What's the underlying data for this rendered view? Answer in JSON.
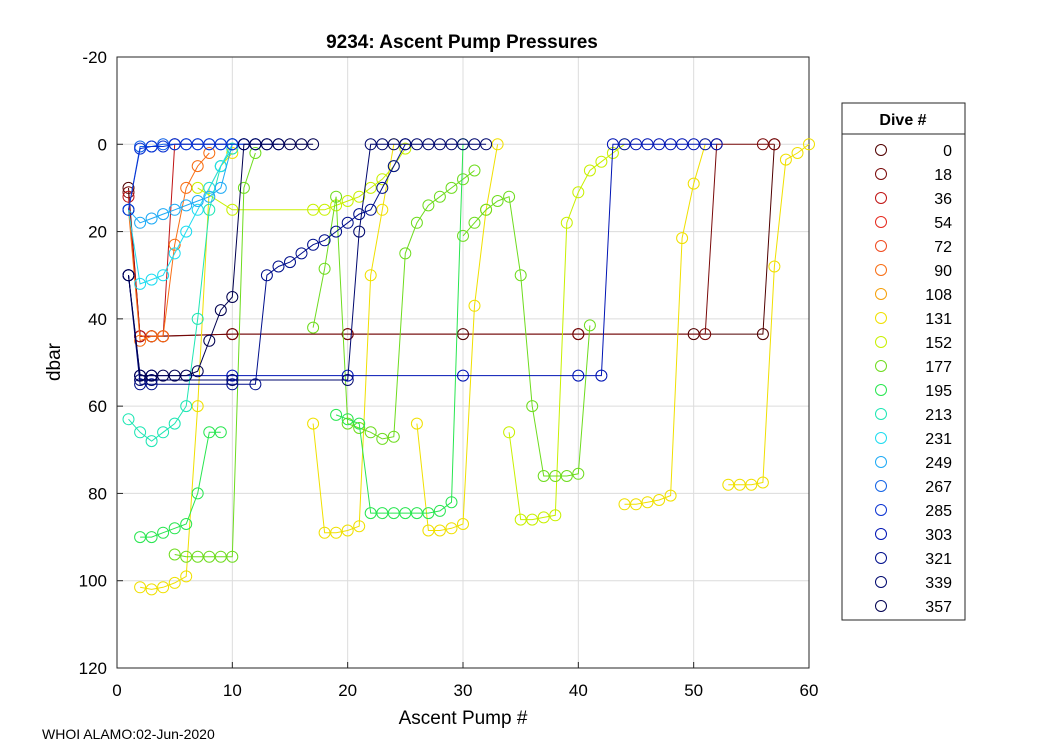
{
  "chart_data": {
    "type": "line",
    "title": "9234: Ascent Pump Pressures",
    "xlabel": "Ascent Pump #",
    "ylabel": "dbar",
    "xlim": [
      0,
      60
    ],
    "ylim": [
      -20,
      120
    ],
    "y_reversed": true,
    "grid": true,
    "marker": "open-circle",
    "x_ticks": [
      "0",
      "10",
      "20",
      "30",
      "40",
      "50",
      "60"
    ],
    "y_ticks": [
      "-20",
      "0",
      "20",
      "40",
      "60",
      "80",
      "100",
      "120"
    ],
    "legend": {
      "title": "Dive #",
      "placement": "right-outside",
      "entries": [
        {
          "label": "0",
          "color": "#500000"
        },
        {
          "label": "18",
          "color": "#7a0a0a"
        },
        {
          "label": "36",
          "color": "#c01414"
        },
        {
          "label": "54",
          "color": "#e62a1e"
        },
        {
          "label": "72",
          "color": "#f04a1e"
        },
        {
          "label": "90",
          "color": "#f86e14"
        },
        {
          "label": "108",
          "color": "#f5a00a"
        },
        {
          "label": "131",
          "color": "#f0e000"
        },
        {
          "label": "152",
          "color": "#c8f000"
        },
        {
          "label": "177",
          "color": "#6edc1e"
        },
        {
          "label": "195",
          "color": "#28e650"
        },
        {
          "label": "213",
          "color": "#1ee6b4"
        },
        {
          "label": "231",
          "color": "#1edcf0"
        },
        {
          "label": "249",
          "color": "#1eaaf5"
        },
        {
          "label": "267",
          "color": "#1464e6"
        },
        {
          "label": "285",
          "color": "#0a32d2"
        },
        {
          "label": "303",
          "color": "#0014b4"
        },
        {
          "label": "321",
          "color": "#000f8c"
        },
        {
          "label": "339",
          "color": "#00086e"
        },
        {
          "label": "357",
          "color": "#000050"
        }
      ]
    },
    "series": [
      {
        "dive": "0",
        "color": "#500000",
        "x": [
          1,
          2,
          3,
          4,
          10,
          20,
          30,
          40,
          50,
          56,
          57
        ],
        "y": [
          10,
          44,
          44,
          44,
          43.5,
          43.5,
          43.5,
          43.5,
          43.5,
          43.5,
          0
        ]
      },
      {
        "dive": "18",
        "color": "#7a0a0a",
        "x": [
          1,
          2,
          3,
          10,
          20,
          40,
          51,
          52,
          56,
          57
        ],
        "y": [
          11,
          44,
          44,
          43.5,
          43.5,
          43.5,
          43.5,
          0,
          0,
          0
        ]
      },
      {
        "dive": "36",
        "color": "#c01414",
        "x": [
          1,
          2,
          3,
          4,
          5,
          10
        ],
        "y": [
          12,
          44,
          44,
          44,
          0,
          0
        ]
      },
      {
        "dive": "90",
        "color": "#f86e14",
        "x": [
          1,
          2,
          3,
          4,
          5,
          6,
          7,
          8
        ],
        "y": [
          15,
          45,
          44,
          44,
          23,
          10,
          5,
          2
        ]
      },
      {
        "dive": "131",
        "color": "#f0e000",
        "x": [
          2,
          3,
          4,
          5,
          6,
          7,
          8,
          9,
          10
        ],
        "y": [
          101.5,
          102,
          101.5,
          100.5,
          99,
          60,
          10,
          5,
          2
        ]
      },
      {
        "dive": "131",
        "color": "#f0e000",
        "x": [
          17,
          18,
          19,
          20,
          21,
          22,
          23,
          24
        ],
        "y": [
          64,
          89,
          89,
          88.5,
          87.5,
          30,
          15,
          0
        ]
      },
      {
        "dive": "131",
        "color": "#f0e000",
        "x": [
          26,
          27,
          28,
          29,
          30,
          31,
          32,
          33
        ],
        "y": [
          64,
          88.5,
          88.5,
          88,
          87,
          37,
          15,
          0
        ]
      },
      {
        "dive": "131",
        "color": "#f0e000",
        "x": [
          44,
          45,
          46,
          47,
          48,
          49,
          50,
          51
        ],
        "y": [
          82.5,
          82.5,
          82,
          81.5,
          80.5,
          21.5,
          9,
          0
        ]
      },
      {
        "dive": "131",
        "color": "#f0e000",
        "x": [
          53,
          54,
          55,
          56,
          57,
          58,
          59,
          60
        ],
        "y": [
          78,
          78,
          78,
          77.5,
          28,
          3.5,
          2,
          0
        ]
      },
      {
        "dive": "152",
        "color": "#c8f000",
        "x": [
          7,
          10,
          17,
          18,
          19,
          20,
          21,
          22,
          23,
          24,
          25
        ],
        "y": [
          10,
          15,
          15,
          15,
          14,
          13,
          12,
          10,
          8,
          5,
          1
        ]
      },
      {
        "dive": "152",
        "color": "#c8f000",
        "x": [
          34,
          35,
          36,
          37,
          38,
          39,
          40,
          41,
          42,
          43,
          44
        ],
        "y": [
          66,
          86,
          86,
          85.5,
          85,
          18,
          11,
          6,
          4,
          2,
          0
        ]
      },
      {
        "dive": "177",
        "color": "#6edc1e",
        "x": [
          5,
          6,
          7,
          8,
          9,
          10,
          11,
          12
        ],
        "y": [
          94,
          94.5,
          94.5,
          94.5,
          94.5,
          94.5,
          10,
          2
        ]
      },
      {
        "dive": "177",
        "color": "#6edc1e",
        "x": [
          17,
          18,
          19,
          20,
          21,
          22,
          23,
          24,
          25,
          26,
          27,
          28,
          29,
          30,
          31
        ],
        "y": [
          42,
          28.5,
          12,
          64,
          65,
          66,
          67.5,
          67,
          25,
          18,
          14,
          12,
          10,
          8,
          6
        ]
      },
      {
        "dive": "177",
        "color": "#6edc1e",
        "x": [
          30,
          31,
          32,
          33,
          34,
          35,
          36,
          37,
          38,
          39,
          40,
          41
        ],
        "y": [
          21,
          18,
          15,
          13,
          12,
          30,
          60,
          76,
          76,
          76,
          75.5,
          41.5
        ]
      },
      {
        "dive": "195",
        "color": "#28e650",
        "x": [
          2,
          3,
          4,
          5,
          6,
          7,
          8,
          9
        ],
        "y": [
          90,
          90,
          89,
          88,
          87,
          80,
          66,
          66
        ]
      },
      {
        "dive": "195",
        "color": "#28e650",
        "x": [
          19,
          20,
          21,
          22,
          23,
          24,
          25,
          26,
          27,
          28,
          29,
          30
        ],
        "y": [
          62,
          63,
          64,
          84.5,
          84.5,
          84.5,
          84.5,
          84.5,
          84.5,
          84,
          82,
          0
        ]
      },
      {
        "dive": "213",
        "color": "#1ee6b4",
        "x": [
          1,
          2,
          3,
          4,
          5,
          6,
          7,
          8,
          9,
          10
        ],
        "y": [
          63,
          66,
          68,
          66,
          64,
          60,
          40,
          15,
          5,
          1
        ]
      },
      {
        "dive": "231",
        "color": "#1edcf0",
        "x": [
          1,
          2,
          3,
          4,
          5,
          6,
          7,
          8,
          9,
          10
        ],
        "y": [
          15,
          32,
          31,
          30,
          25,
          20,
          15,
          10,
          5,
          0
        ]
      },
      {
        "dive": "249",
        "color": "#1eaaf5",
        "x": [
          1,
          2,
          3,
          4,
          5,
          6,
          7,
          8,
          9,
          10
        ],
        "y": [
          15,
          18,
          17,
          16,
          15,
          14,
          13,
          12,
          10,
          0
        ]
      },
      {
        "dive": "267",
        "color": "#1464e6",
        "x": [
          1,
          2,
          3,
          4,
          5,
          6,
          7,
          8,
          9,
          10,
          11,
          12
        ],
        "y": [
          15,
          0.5,
          0.5,
          0,
          0,
          0,
          0,
          0,
          0,
          0,
          0,
          0
        ]
      },
      {
        "dive": "285",
        "color": "#0a32d2",
        "x": [
          1,
          2,
          3,
          4,
          5,
          6,
          7,
          8,
          9,
          10,
          11,
          12,
          13,
          14
        ],
        "y": [
          15,
          1,
          0.5,
          0.5,
          0,
          0,
          0,
          0,
          0,
          0,
          0,
          0,
          0,
          0
        ]
      },
      {
        "dive": "303",
        "color": "#0014b4",
        "x": [
          1,
          2,
          3,
          10,
          20,
          30,
          40,
          42,
          43,
          44,
          45,
          46,
          47,
          48,
          49,
          50,
          51,
          52
        ],
        "y": [
          30,
          53,
          53,
          53,
          53,
          53,
          53,
          53,
          0,
          0,
          0,
          0,
          0,
          0,
          0,
          0,
          0,
          0
        ]
      },
      {
        "dive": "321",
        "color": "#000f8c",
        "x": [
          1,
          2,
          3,
          10,
          12,
          13,
          14,
          15,
          16,
          17,
          18,
          19,
          20,
          21,
          22,
          23,
          24,
          25
        ],
        "y": [
          30,
          55,
          55,
          55,
          55,
          30,
          28,
          27,
          25,
          23,
          22,
          20,
          18,
          16,
          15,
          10,
          5,
          0
        ]
      },
      {
        "dive": "339",
        "color": "#00086e",
        "x": [
          1,
          2,
          3,
          10,
          20,
          21,
          22,
          23,
          24,
          25,
          26,
          27,
          28,
          29,
          30,
          31,
          32
        ],
        "y": [
          30,
          54,
          54,
          54,
          54,
          20,
          0,
          0,
          0,
          0,
          0,
          0,
          0,
          0,
          0,
          0,
          0
        ]
      },
      {
        "dive": "357",
        "color": "#000050",
        "x": [
          1,
          2,
          3,
          4,
          5,
          6,
          7,
          8,
          9,
          10,
          11,
          12,
          13,
          14,
          15,
          16,
          17
        ],
        "y": [
          30,
          53,
          53,
          53,
          53,
          53,
          52,
          45,
          38,
          35,
          0,
          0,
          0,
          0,
          0,
          0,
          0
        ]
      }
    ]
  },
  "footer": "WHOI ALAMO:02-Jun-2020"
}
